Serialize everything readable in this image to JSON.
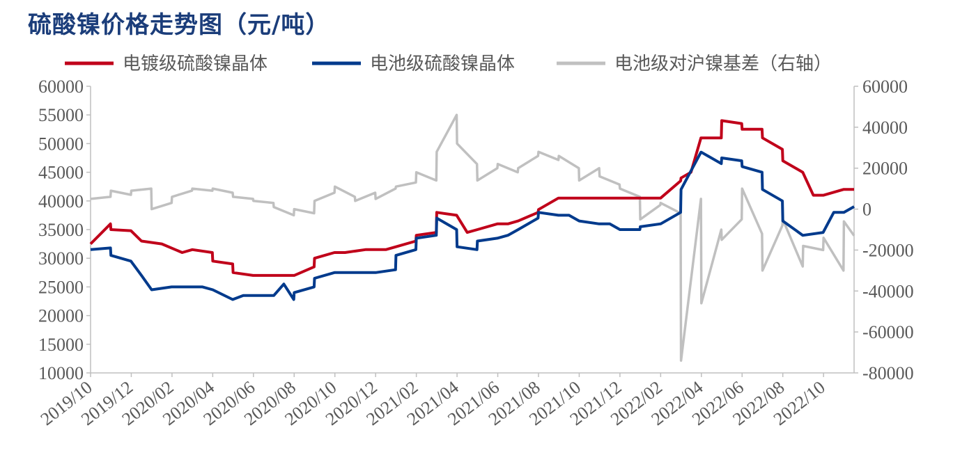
{
  "header": {
    "title": "硫酸镍价格走势图（元/吨）"
  },
  "chart_data": {
    "type": "line",
    "title": "硫酸镍价格走势图（元/吨）",
    "x_tick_labels": [
      "2019/10",
      "2019/12",
      "2020/02",
      "2020/04",
      "2020/06",
      "2020/08",
      "2020/10",
      "2020/12",
      "2021/02",
      "2021/04",
      "2021/06",
      "2021/08",
      "2021/10",
      "2021/12",
      "2022/02",
      "2022/04",
      "2022/06",
      "2022/08",
      "2022/10"
    ],
    "y_left": {
      "range": [
        10000,
        60000
      ],
      "ticks": [
        "60000",
        "55000",
        "50000",
        "45000",
        "40000",
        "35000",
        "30000",
        "25000",
        "20000",
        "15000",
        "10000"
      ]
    },
    "y_right": {
      "range": [
        -80000,
        60000
      ],
      "ticks": [
        "60000",
        "40000",
        "20000",
        "0",
        "-20000",
        "-40000",
        "-60000",
        "-80000"
      ]
    },
    "legend_position": "top",
    "series": [
      {
        "name": "电镀级硫酸镍晶体",
        "axis": "left",
        "color": "#c0001a",
        "points": [
          [
            "2019/10",
            32500
          ],
          [
            "2019/10",
            36000
          ],
          [
            "2019/11",
            35000
          ],
          [
            "2019/11",
            34800
          ],
          [
            "2019/12",
            33000
          ],
          [
            "2020/01",
            32500
          ],
          [
            "2020/02",
            31000
          ],
          [
            "2020/03",
            31500
          ],
          [
            "2020/03",
            31000
          ],
          [
            "2020/04",
            29500
          ],
          [
            "2020/04",
            29000
          ],
          [
            "2020/05",
            27500
          ],
          [
            "2020/05",
            27000
          ],
          [
            "2020/06",
            27000
          ],
          [
            "2020/07",
            27000
          ],
          [
            "2020/08",
            27000
          ],
          [
            "2020/08",
            28500
          ],
          [
            "2020/09",
            30000
          ],
          [
            "2020/09",
            31000
          ],
          [
            "2020/10",
            31000
          ],
          [
            "2020/11",
            31500
          ],
          [
            "2020/12",
            31500
          ],
          [
            "2021/01",
            32000
          ],
          [
            "2021/01",
            33000
          ],
          [
            "2021/02",
            34000
          ],
          [
            "2021/02",
            34500
          ],
          [
            "2021/03",
            38000
          ],
          [
            "2021/03",
            37500
          ],
          [
            "2021/04",
            34500
          ],
          [
            "2021/05",
            35000
          ],
          [
            "2021/05",
            36000
          ],
          [
            "2021/06",
            36000
          ],
          [
            "2021/07",
            36500
          ],
          [
            "2021/07",
            38000
          ],
          [
            "2021/08",
            38500
          ],
          [
            "2021/08",
            40500
          ],
          [
            "2021/09",
            40500
          ],
          [
            "2021/10",
            40500
          ],
          [
            "2021/11",
            40500
          ],
          [
            "2021/12",
            40500
          ],
          [
            "2022/01",
            40500
          ],
          [
            "2022/02",
            40500
          ],
          [
            "2022/02",
            43500
          ],
          [
            "2022/03",
            44000
          ],
          [
            "2022/03",
            45000
          ],
          [
            "2022/03",
            51000
          ],
          [
            "2022/04",
            51000
          ],
          [
            "2022/04",
            51000
          ],
          [
            "2022/05",
            54000
          ],
          [
            "2022/05",
            53500
          ],
          [
            "2022/06",
            52500
          ],
          [
            "2022/06",
            52500
          ],
          [
            "2022/07",
            51000
          ],
          [
            "2022/07",
            49000
          ],
          [
            "2022/08",
            47000
          ],
          [
            "2022/08",
            45000
          ],
          [
            "2022/09",
            41000
          ],
          [
            "2022/10",
            41000
          ],
          [
            "2022/10",
            42000
          ],
          [
            "2022/11",
            42000
          ]
        ]
      },
      {
        "name": "电池级硫酸镍晶体",
        "axis": "left",
        "color": "#003a8c",
        "points": [
          [
            "2019/10",
            31500
          ],
          [
            "2019/10",
            31800
          ],
          [
            "2019/11",
            30500
          ],
          [
            "2019/11",
            29500
          ],
          [
            "2019/12",
            27000
          ],
          [
            "2020/01",
            24500
          ],
          [
            "2020/01",
            25000
          ],
          [
            "2020/02",
            25000
          ],
          [
            "2020/03",
            25000
          ],
          [
            "2020/04",
            24500
          ],
          [
            "2020/04",
            22800
          ],
          [
            "2020/05",
            23500
          ],
          [
            "2020/06",
            23500
          ],
          [
            "2020/07",
            23500
          ],
          [
            "2020/07",
            25500
          ],
          [
            "2020/07",
            22800
          ],
          [
            "2020/08",
            24000
          ],
          [
            "2020/08",
            25000
          ],
          [
            "2020/09",
            26500
          ],
          [
            "2020/09",
            27500
          ],
          [
            "2020/10",
            27500
          ],
          [
            "2020/11",
            27500
          ],
          [
            "2020/12",
            27500
          ],
          [
            "2020/12",
            28000
          ],
          [
            "2021/01",
            30500
          ],
          [
            "2021/01",
            31500
          ],
          [
            "2021/02",
            33500
          ],
          [
            "2021/02",
            34000
          ],
          [
            "2021/03",
            37000
          ],
          [
            "2021/03",
            35000
          ],
          [
            "2021/04",
            32000
          ],
          [
            "2021/04",
            31500
          ],
          [
            "2021/05",
            33000
          ],
          [
            "2021/05",
            33500
          ],
          [
            "2021/06",
            34000
          ],
          [
            "2021/07",
            35000
          ],
          [
            "2021/07",
            37000
          ],
          [
            "2021/08",
            38000
          ],
          [
            "2021/08",
            37500
          ],
          [
            "2021/09",
            37500
          ],
          [
            "2021/10",
            36500
          ],
          [
            "2021/10",
            36000
          ],
          [
            "2021/11",
            36000
          ],
          [
            "2021/12",
            35000
          ],
          [
            "2021/12",
            35000
          ],
          [
            "2022/01",
            35500
          ],
          [
            "2022/01",
            36000
          ],
          [
            "2022/02",
            36000
          ],
          [
            "2022/02",
            38000
          ],
          [
            "2022/03",
            42000
          ],
          [
            "2022/03",
            48500
          ],
          [
            "2022/04",
            48500
          ],
          [
            "2022/04",
            46500
          ],
          [
            "2022/05",
            47500
          ],
          [
            "2022/05",
            47000
          ],
          [
            "2022/06",
            46000
          ],
          [
            "2022/06",
            45000
          ],
          [
            "2022/07",
            42000
          ],
          [
            "2022/07",
            40000
          ],
          [
            "2022/08",
            36500
          ],
          [
            "2022/08",
            34000
          ],
          [
            "2022/09",
            34000
          ],
          [
            "2022/09",
            34500
          ],
          [
            "2022/10",
            38000
          ],
          [
            "2022/11",
            38000
          ],
          [
            "2022/11",
            39000
          ]
        ]
      },
      {
        "name": "电池级对沪镍基差（右轴）",
        "axis": "right",
        "color": "#c0c0c0",
        "points": [
          [
            "2019/10",
            5000
          ],
          [
            "2019/10",
            6000
          ],
          [
            "2019/11",
            9000
          ],
          [
            "2019/11",
            7000
          ],
          [
            "2019/12",
            9000
          ],
          [
            "2019/12",
            10000
          ],
          [
            "2020/01",
            0
          ],
          [
            "2020/01",
            3000
          ],
          [
            "2020/02",
            6000
          ],
          [
            "2020/02",
            9000
          ],
          [
            "2020/03",
            10000
          ],
          [
            "2020/03",
            9000
          ],
          [
            "2020/04",
            10000
          ],
          [
            "2020/04",
            8000
          ],
          [
            "2020/05",
            6000
          ],
          [
            "2020/05",
            5000
          ],
          [
            "2020/06",
            4000
          ],
          [
            "2020/06",
            3000
          ],
          [
            "2020/07",
            1000
          ],
          [
            "2020/07",
            -3000
          ],
          [
            "2020/08",
            0
          ],
          [
            "2020/08",
            -2000
          ],
          [
            "2020/09",
            4000
          ],
          [
            "2020/09",
            8000
          ],
          [
            "2020/10",
            11000
          ],
          [
            "2020/10",
            6000
          ],
          [
            "2020/11",
            4000
          ],
          [
            "2020/11",
            8000
          ],
          [
            "2020/12",
            5000
          ],
          [
            "2020/12",
            10000
          ],
          [
            "2021/01",
            11000
          ],
          [
            "2021/01",
            13000
          ],
          [
            "2021/02",
            18000
          ],
          [
            "2021/02",
            14000
          ],
          [
            "2021/03",
            28000
          ],
          [
            "2021/03",
            46000
          ],
          [
            "2021/04",
            32000
          ],
          [
            "2021/04",
            22000
          ],
          [
            "2021/05",
            14000
          ],
          [
            "2021/05",
            20000
          ],
          [
            "2021/06",
            22000
          ],
          [
            "2021/06",
            18000
          ],
          [
            "2021/07",
            20000
          ],
          [
            "2021/07",
            26000
          ],
          [
            "2021/08",
            28000
          ],
          [
            "2021/08",
            24000
          ],
          [
            "2021/09",
            26000
          ],
          [
            "2021/09",
            20000
          ],
          [
            "2021/10",
            14000
          ],
          [
            "2021/10",
            20000
          ],
          [
            "2021/11",
            16000
          ],
          [
            "2021/11",
            12000
          ],
          [
            "2021/12",
            10000
          ],
          [
            "2021/12",
            6000
          ],
          [
            "2022/01",
            -5000
          ],
          [
            "2022/01",
            2000
          ],
          [
            "2022/02",
            3000
          ],
          [
            "2022/02",
            -2000
          ],
          [
            "2022/03",
            -74000
          ],
          [
            "2022/03",
            5000
          ],
          [
            "2022/04",
            -46000
          ],
          [
            "2022/04",
            -10000
          ],
          [
            "2022/05",
            -15000
          ],
          [
            "2022/05",
            -5000
          ],
          [
            "2022/06",
            10000
          ],
          [
            "2022/06",
            -12000
          ],
          [
            "2022/07",
            -30000
          ],
          [
            "2022/07",
            -8000
          ],
          [
            "2022/08",
            -5000
          ],
          [
            "2022/08",
            -28000
          ],
          [
            "2022/09",
            -18000
          ],
          [
            "2022/09",
            -20000
          ],
          [
            "2022/10",
            -14000
          ],
          [
            "2022/10",
            -30000
          ],
          [
            "2022/11",
            -6000
          ],
          [
            "2022/11",
            -13000
          ]
        ]
      }
    ]
  }
}
